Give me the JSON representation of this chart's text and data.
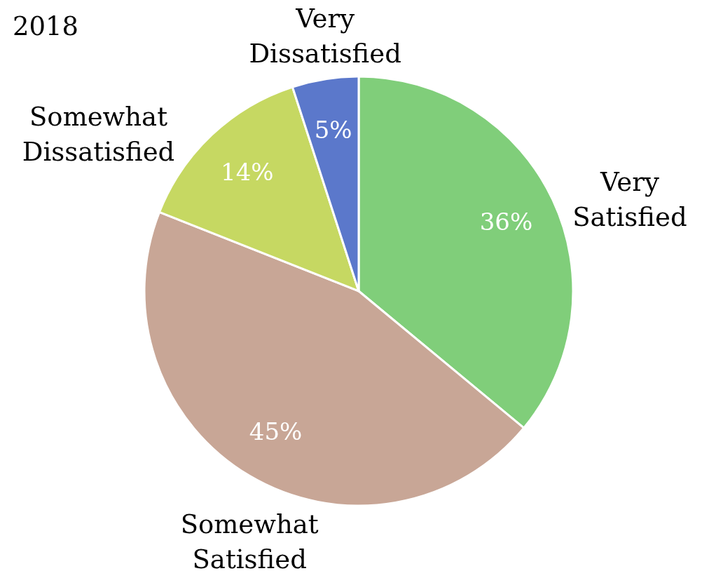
{
  "chart_data": {
    "type": "pie",
    "title": "2018",
    "categories": [
      "Very Satisfied",
      "Somewhat Satisfied",
      "Somewhat Dissatisfied",
      "Very Dissatisfied"
    ],
    "values": [
      36,
      45,
      14,
      5
    ],
    "colors": [
      "#80ce7a",
      "#c8a696",
      "#c6d862",
      "#5b78cb"
    ],
    "value_labels": [
      "36%",
      "45%",
      "14%",
      "5%"
    ]
  }
}
